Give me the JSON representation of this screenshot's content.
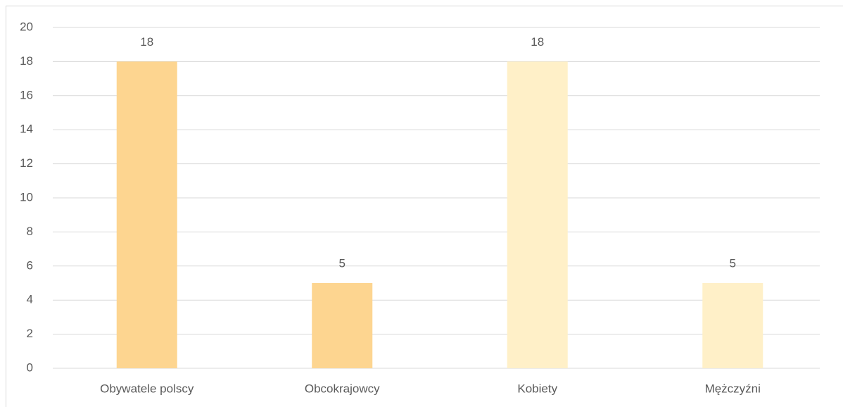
{
  "chart_data": {
    "type": "bar",
    "categories": [
      "Obywatele polscy",
      "Obcokrajowcy",
      "Kobiety",
      "Mężczyźni"
    ],
    "values": [
      18,
      5,
      18,
      5
    ],
    "colors": [
      "#fdd590",
      "#fdd590",
      "#fff0c8",
      "#fff0c8"
    ],
    "ylim": [
      0,
      20
    ],
    "yticks": [
      0,
      2,
      4,
      6,
      8,
      10,
      12,
      14,
      16,
      18,
      20
    ],
    "grid": true
  }
}
